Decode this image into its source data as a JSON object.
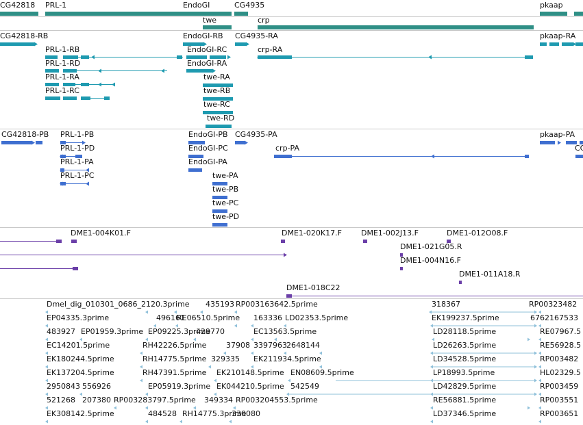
{
  "colors": {
    "gene": "#2f8f86",
    "transcript": "#1e9ab0",
    "protein": "#3f6fd0",
    "bac": "#6b3fa8",
    "est": "#8fc0da",
    "separator": "#c8c8c8"
  },
  "tracks": {
    "genes": {
      "labels": [
        "CG42818",
        "PRL-1",
        "EndoGI",
        "twe",
        "CG4935",
        "crp",
        "pkaap"
      ]
    },
    "transcripts": {
      "labels": [
        "CG42818-RB",
        "EndoGI-RB",
        "CG4935-RA",
        "pkaap-RA",
        "PRL-1-RB",
        "EndoGI-RC",
        "crp-RA",
        "PRL-1-RD",
        "EndoGI-RA",
        "PRL-1-RA",
        "twe-RA",
        "PRL-1-RC",
        "twe-RB",
        "twe-RC",
        "twe-RD"
      ]
    },
    "proteins": {
      "labels": [
        "CG42818-PB",
        "PRL-1-PB",
        "EndoGI-PB",
        "CG4935-PA",
        "pkaap-PA",
        "CC",
        "PRL-1-PD",
        "EndoGI-PC",
        "crp-PA",
        "PRL-1-PA",
        "EndoGI-PA",
        "PRL-1-PC",
        "twe-PA",
        "twe-PB",
        "twe-PC",
        "twe-PD"
      ]
    },
    "bacs": {
      "labels": [
        "DME1-004K01.F",
        "DME1-020K17.F",
        "DME1-002J13.F",
        "DME1-012O08.F",
        "DME1-021G05.R",
        "DME1-004N16.F",
        "DME1-011A18.R",
        "DME1-018C22"
      ]
    },
    "ests": {
      "labels": [
        "Dmel_dig_010301_0686_2120.3prime",
        "435193",
        "RP003163642.5prime",
        "318367",
        "RP00323482",
        "EP04335.3prime",
        "496161",
        "RE06510.5prime",
        "163336",
        "LD02353.5prime",
        "EK199237.5prime",
        "6762167533",
        "483927",
        "EP01959.3prime",
        "EP09225.3prime",
        "429770",
        "EC13563.5prime",
        "LD28118.5prime",
        "RE07967.5",
        "EC14201.5prime",
        "RH42226.5prime",
        "37908",
        "3397963",
        "2648144",
        "LD26263.5prime",
        "RE56928.5",
        "EK180244.5prime",
        "RH14775.5prime",
        "329335",
        "EK211934.5prime",
        "LD34528.5prime",
        "RP003482",
        "EK137204.5prime",
        "RH47391.5prime",
        "EK210148.5prime",
        "EN08609.5prime",
        "LP18993.5prime",
        "HL02329.5",
        "2950843",
        "556926",
        "EP05919.3prime",
        "EK044210.5prime",
        "542549",
        "LD42829.5prime",
        "RP003459",
        "521268",
        "207380",
        "RP003283797.5prime",
        "349334",
        "RP003204553.5prime",
        "RE56881.5prime",
        "RP003551",
        "EK308142.5prime",
        "484528",
        "RH14775.3prime",
        "330080",
        "LD37346.5prime",
        "RP003651"
      ]
    }
  }
}
